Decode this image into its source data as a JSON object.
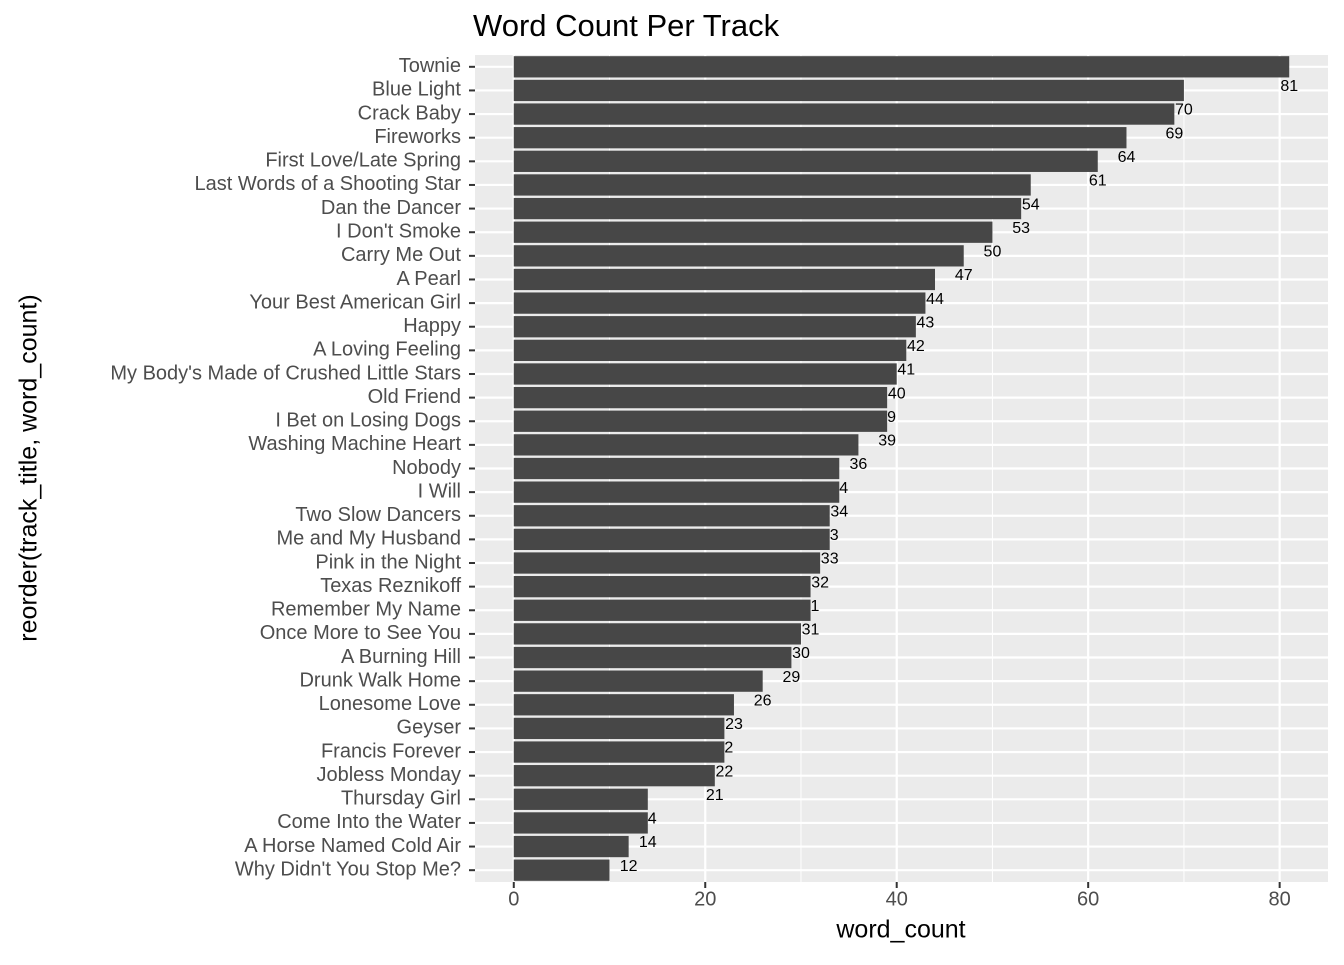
{
  "chart_data": {
    "type": "barh",
    "title": "Word Count Per Track",
    "x_label": "word_count",
    "y_label": "reorder(track_title, word_count)",
    "categories": [
      "Townie",
      "Blue Light",
      "Crack Baby",
      "Fireworks",
      "First Love/Late Spring",
      "Last Words of a Shooting Star",
      "Dan the Dancer",
      "I Don't Smoke",
      "Carry Me Out",
      "A Pearl",
      "Your Best American Girl",
      "Happy",
      "A Loving Feeling",
      "My Body's Made of Crushed Little Stars",
      "Old Friend",
      "I Bet on Losing Dogs",
      "Washing Machine Heart",
      "Nobody",
      "I Will",
      "Two Slow Dancers",
      "Me and My Husband",
      "Pink in the Night",
      "Texas Reznikoff",
      "Remember My Name",
      "Once More to See You",
      "A Burning Hill",
      "Drunk Walk Home",
      "Lonesome Love",
      "Geyser",
      "Francis Forever",
      "Jobless Monday",
      "Thursday Girl",
      "Come Into the Water",
      "A Horse Named Cold Air",
      "Why Didn't You Stop Me?"
    ],
    "values": [
      81,
      70,
      69,
      64,
      61,
      54,
      53,
      50,
      47,
      44,
      43,
      42,
      41,
      40,
      39,
      39,
      36,
      34,
      34,
      33,
      33,
      32,
      31,
      31,
      30,
      29,
      26,
      23,
      22,
      22,
      21,
      14,
      14,
      12,
      10
    ],
    "color": "#474747",
    "xlim": [
      -4.05,
      85.05
    ],
    "xticks": [
      0,
      20,
      40,
      60,
      80
    ],
    "minor_xticks": [
      10,
      30,
      50,
      70
    ],
    "grid": true
  }
}
